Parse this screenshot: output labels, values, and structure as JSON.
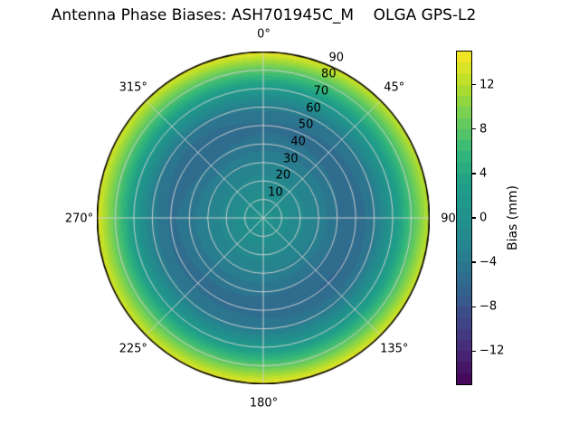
{
  "chart_data": {
    "type": "heatmap",
    "projection": "polar",
    "title": "Antenna Phase Biases: ASH701945C_M    OLGA GPS-L2",
    "angular_axis": {
      "tick_angles_deg": [
        0,
        45,
        90,
        135,
        180,
        225,
        270,
        315
      ],
      "tick_labels": [
        "0°",
        "45°",
        "90",
        "135°",
        "180°",
        "225°",
        "270°",
        "315°"
      ],
      "direction": "clockwise",
      "zero_location": "top"
    },
    "radial_axis": {
      "range": [
        0,
        90
      ],
      "tick_values": [
        10,
        20,
        30,
        40,
        50,
        60,
        70,
        80,
        90
      ],
      "tick_labels": [
        "10",
        "20",
        "30",
        "40",
        "50",
        "60",
        "70",
        "80",
        "90"
      ],
      "label_angle_deg": 22.5
    },
    "colorbar": {
      "label": "Bias (mm)",
      "range": [
        -15,
        15
      ],
      "band_step_mm": 1,
      "tick_values": [
        12,
        8,
        4,
        0,
        -4,
        -8,
        -12
      ],
      "tick_labels": [
        "12",
        "8",
        "4",
        "0",
        "−4",
        "−8",
        "−12"
      ],
      "colormap": "viridis"
    },
    "grid": {
      "ring_step_deg": 10,
      "spoke_step_deg": 45,
      "line_color": "#d3d3d3",
      "edge_color": "#000000"
    },
    "data_grid": {
      "azimuth_deg": [
        0,
        45,
        90,
        135,
        180,
        225,
        270,
        315
      ],
      "zenith_deg": [
        0,
        10,
        20,
        30,
        40,
        50,
        60,
        70,
        80,
        90
      ],
      "bias_mm": [
        [
          0.5,
          -0.5,
          -1.5,
          -3.0,
          -4.6,
          -5.2,
          -3.6,
          2.0,
          8.0,
          14.8
        ],
        [
          0.5,
          -0.5,
          -1.6,
          -3.1,
          -4.8,
          -5.5,
          -4.0,
          1.5,
          7.0,
          13.0
        ],
        [
          0.5,
          -0.5,
          -1.7,
          -3.2,
          -5.0,
          -5.8,
          -4.2,
          1.2,
          7.0,
          12.5
        ],
        [
          0.5,
          -0.6,
          -1.8,
          -3.4,
          -5.2,
          -6.2,
          -4.4,
          1.2,
          7.5,
          14.0
        ],
        [
          0.5,
          -0.5,
          -1.6,
          -3.1,
          -4.8,
          -5.6,
          -4.0,
          1.8,
          8.0,
          14.8
        ],
        [
          0.5,
          -0.5,
          -1.5,
          -3.0,
          -4.7,
          -5.4,
          -3.8,
          1.8,
          7.8,
          13.5
        ],
        [
          0.5,
          -0.5,
          -1.5,
          -2.9,
          -4.5,
          -5.2,
          -3.5,
          2.2,
          8.2,
          14.0
        ],
        [
          0.5,
          -0.6,
          -1.8,
          -3.3,
          -5.0,
          -6.0,
          -4.2,
          1.5,
          7.5,
          13.5
        ]
      ]
    }
  }
}
